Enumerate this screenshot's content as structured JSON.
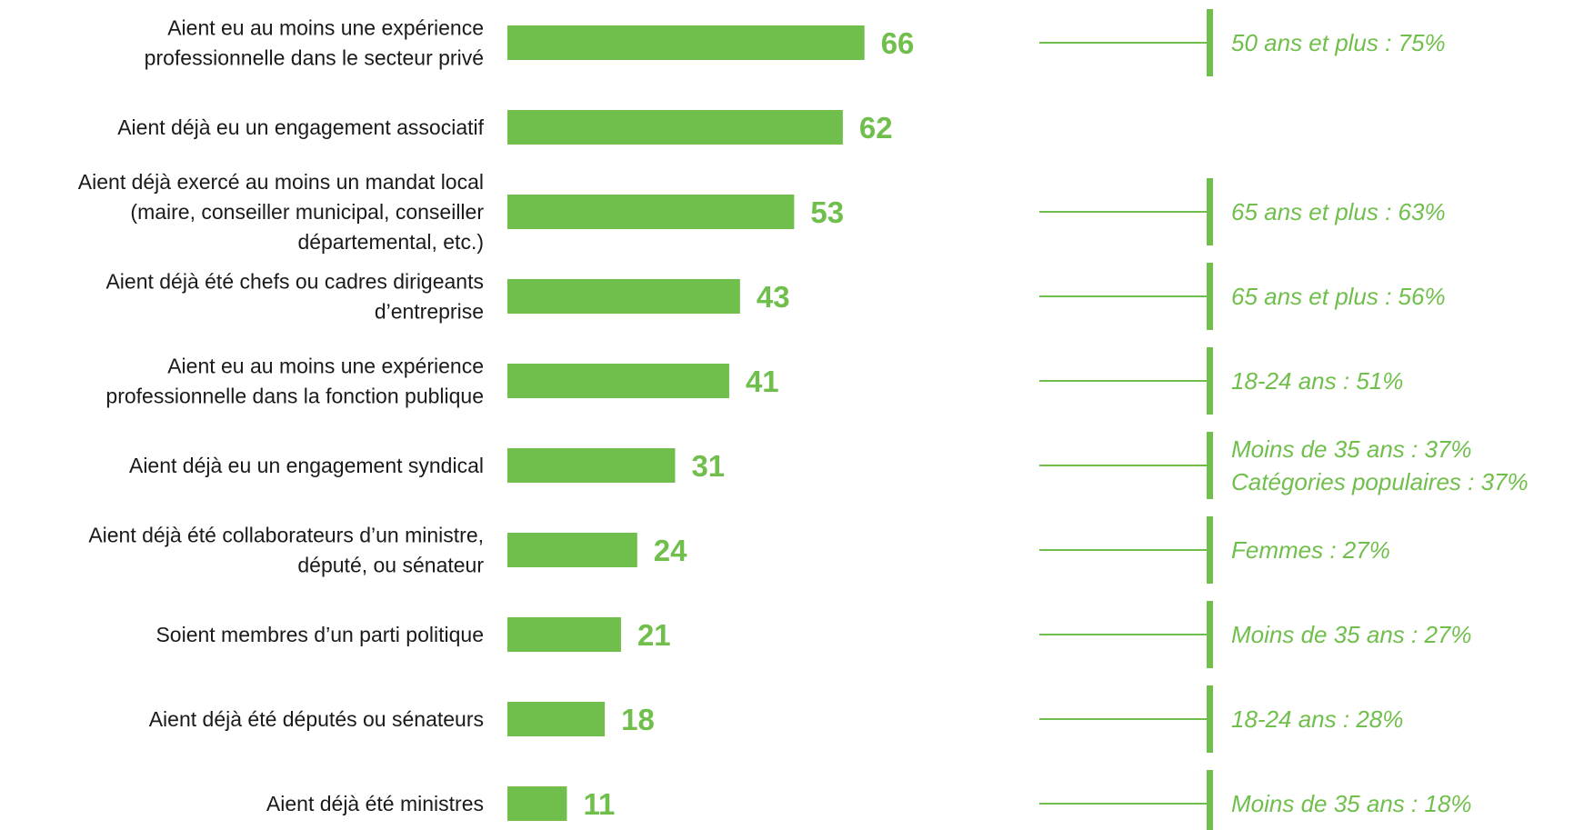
{
  "chart_data": {
    "type": "bar",
    "orientation": "horizontal",
    "title": "",
    "xlabel": "",
    "ylabel": "",
    "xlim": [
      0,
      100
    ],
    "grid": false,
    "legend": "none",
    "colors": {
      "bar": "#70bf4c",
      "value_text": "#70bf4c",
      "note_text": "#70bf4c",
      "label_text": "#1a1a1a"
    },
    "categories": [
      [
        "Aient eu au moins une expérience",
        "professionnelle dans le secteur privé"
      ],
      [
        "Aient déjà eu un engagement associatif"
      ],
      [
        "Aient déjà exercé au moins un mandat local",
        "(maire, conseiller municipal, conseiller",
        "départemental, etc.)"
      ],
      [
        "Aient déjà été chefs ou cadres dirigeants",
        "d’entreprise"
      ],
      [
        "Aient eu au moins une expérience",
        "professionnelle dans la fonction publique"
      ],
      [
        "Aient déjà eu un engagement syndical"
      ],
      [
        "Aient déjà été collaborateurs d’un ministre,",
        "député, ou sénateur"
      ],
      [
        "Soient membres d’un parti politique"
      ],
      [
        "Aient déjà été députés ou sénateurs"
      ],
      [
        "Aient déjà été ministres"
      ]
    ],
    "values": [
      66,
      62,
      53,
      43,
      41,
      31,
      24,
      21,
      18,
      11
    ],
    "annotations": [
      [
        "50 ans et plus : 75%"
      ],
      [],
      [
        "65 ans et plus : 63%"
      ],
      [
        "65 ans et plus : 56%"
      ],
      [
        "18-24 ans : 51%"
      ],
      [
        "Moins de 35 ans : 37%",
        "Catégories populaires : 37%"
      ],
      [
        "Femmes : 27%"
      ],
      [
        "Moins de 35 ans : 27%"
      ],
      [
        "18-24 ans : 28%"
      ],
      [
        "Moins de 35 ans : 18%"
      ]
    ]
  }
}
